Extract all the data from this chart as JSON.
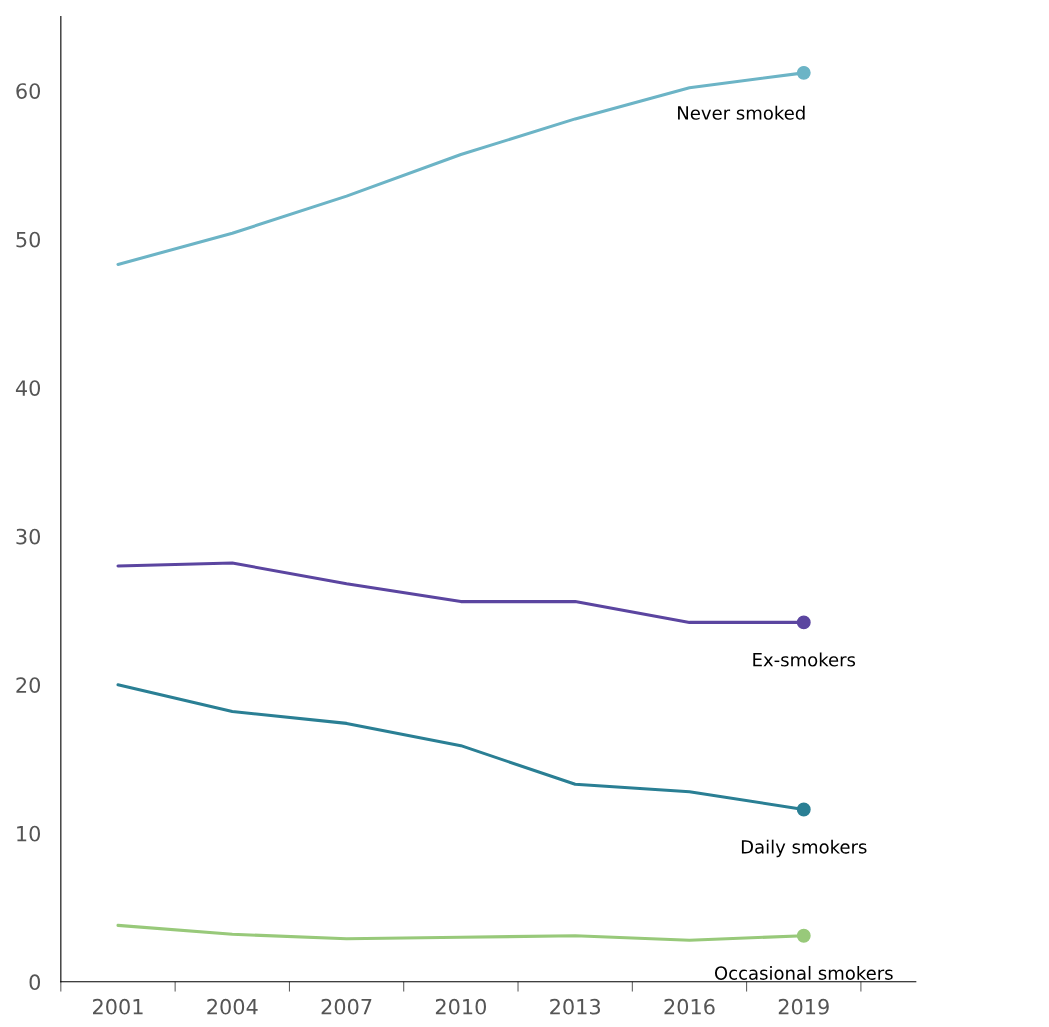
{
  "chart_data": {
    "type": "line",
    "categories": [
      "2001",
      "2004",
      "2007",
      "2010",
      "2013",
      "2016",
      "2019"
    ],
    "ylim": [
      0,
      65
    ],
    "yticks": [
      0,
      10,
      20,
      30,
      40,
      50,
      60
    ],
    "grid": false,
    "legend": false,
    "series": [
      {
        "name": "Never smoked",
        "color": "#6cb4c6",
        "values": [
          48.3,
          50.4,
          52.9,
          55.7,
          58.1,
          60.2,
          61.2
        ]
      },
      {
        "name": "Ex-smokers",
        "color": "#5b45a0",
        "values": [
          28.0,
          28.2,
          26.8,
          25.6,
          25.6,
          24.2,
          24.2
        ]
      },
      {
        "name": "Daily smokers",
        "color": "#2a7f94",
        "values": [
          20.0,
          18.2,
          17.4,
          15.9,
          13.3,
          12.8,
          11.6
        ]
      },
      {
        "name": "Occasional smokers",
        "color": "#98c97a",
        "values": [
          3.8,
          3.2,
          2.9,
          3.0,
          3.1,
          2.8,
          3.1
        ]
      }
    ]
  }
}
